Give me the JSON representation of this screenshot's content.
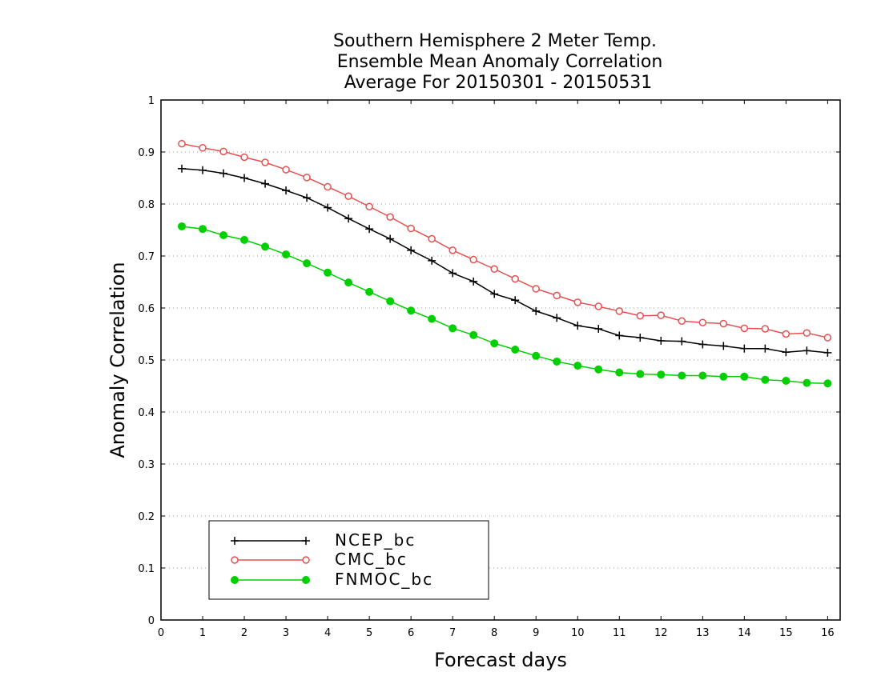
{
  "chart_data": {
    "type": "line",
    "title_lines": [
      "Southern Hemisphere 2 Meter Temp.",
      "Ensemble Mean Anomaly Correlation",
      "Average For 20150301 - 20150531"
    ],
    "xlabel": "Forecast days",
    "ylabel": "Anomaly Correlation",
    "xlim": [
      0,
      16.3
    ],
    "ylim": [
      0,
      1
    ],
    "x_ticks": [
      0,
      1,
      2,
      3,
      4,
      5,
      6,
      7,
      8,
      9,
      10,
      11,
      12,
      13,
      14,
      15,
      16
    ],
    "y_ticks": [
      0,
      0.1,
      0.2,
      0.3,
      0.4,
      0.5,
      0.6,
      0.7,
      0.8,
      0.9,
      1
    ],
    "y_tick_labels": [
      "0",
      "0.1",
      "0.2",
      "0.3",
      "0.4",
      "0.5",
      "0.6",
      "0.7",
      "0.8",
      "0.9",
      "1"
    ],
    "grid": "horizontal-dotted",
    "legend_position": "bottom-left",
    "x": [
      0.5,
      1,
      1.5,
      2,
      2.5,
      3,
      3.5,
      4,
      4.5,
      5,
      5.5,
      6,
      6.5,
      7,
      7.5,
      8,
      8.5,
      9,
      9.5,
      10,
      10.5,
      11,
      11.5,
      12,
      12.5,
      13,
      13.5,
      14,
      14.5,
      15,
      15.5,
      16
    ],
    "series": [
      {
        "name": "NCEP_bc",
        "color": "#000000",
        "marker": "plus",
        "values": [
          0.868,
          0.865,
          0.859,
          0.85,
          0.839,
          0.826,
          0.812,
          0.793,
          0.772,
          0.752,
          0.733,
          0.711,
          0.691,
          0.667,
          0.651,
          0.627,
          0.615,
          0.594,
          0.581,
          0.566,
          0.56,
          0.547,
          0.543,
          0.537,
          0.536,
          0.53,
          0.527,
          0.522,
          0.522,
          0.515,
          0.518,
          0.514
        ]
      },
      {
        "name": "CMC_bc",
        "color": "#e65050",
        "marker": "open-circle",
        "values": [
          0.916,
          0.908,
          0.901,
          0.89,
          0.88,
          0.866,
          0.851,
          0.833,
          0.815,
          0.795,
          0.775,
          0.753,
          0.733,
          0.711,
          0.693,
          0.675,
          0.656,
          0.637,
          0.624,
          0.611,
          0.603,
          0.594,
          0.585,
          0.586,
          0.575,
          0.572,
          0.57,
          0.561,
          0.56,
          0.55,
          0.552,
          0.543
        ]
      },
      {
        "name": "FNMOC_bc",
        "color": "#00d000",
        "marker": "filled-circle",
        "values": [
          0.757,
          0.752,
          0.74,
          0.731,
          0.718,
          0.703,
          0.686,
          0.668,
          0.649,
          0.631,
          0.613,
          0.595,
          0.579,
          0.561,
          0.548,
          0.532,
          0.52,
          0.508,
          0.497,
          0.489,
          0.482,
          0.476,
          0.473,
          0.472,
          0.47,
          0.47,
          0.468,
          0.468,
          0.462,
          0.46,
          0.456,
          0.455
        ]
      }
    ]
  }
}
